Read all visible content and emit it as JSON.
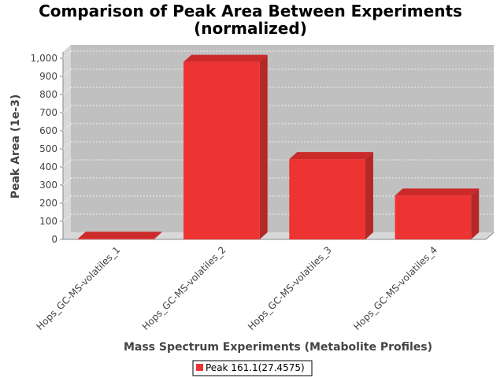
{
  "chart_data": {
    "type": "bar",
    "title": "Comparison of Peak Area Between Experiments",
    "subtitle": "(normalized)",
    "xlabel": "Mass Spectrum Experiments (Metabolite Profiles)",
    "ylabel": "Peak Area (1e-3)",
    "categories": [
      "Hops_GC-MS-volatiles_1",
      "Hops_GC-MS-volatiles_2",
      "Hops_GC-MS-volatiles_3",
      "Hops_GC-MS-volatiles_4"
    ],
    "series": [
      {
        "name": "Peak 161.1(27.4575)",
        "values": [
          3,
          980,
          443,
          242
        ]
      }
    ],
    "ylim": [
      0,
      1000
    ],
    "yticks": [
      0,
      100,
      200,
      300,
      400,
      500,
      600,
      700,
      800,
      900,
      1000
    ],
    "ytick_labels": [
      "0",
      "100",
      "200",
      "300",
      "400",
      "500",
      "600",
      "700",
      "800",
      "900",
      "1,000"
    ],
    "grid": true,
    "legend_position": "bottom",
    "colors": {
      "bar": "#ee3333",
      "bar_top": "#cc2a2a",
      "bar_side": "#b52828",
      "plot_bg": "#c0c0c0",
      "wall": "#d8d8d8"
    }
  }
}
